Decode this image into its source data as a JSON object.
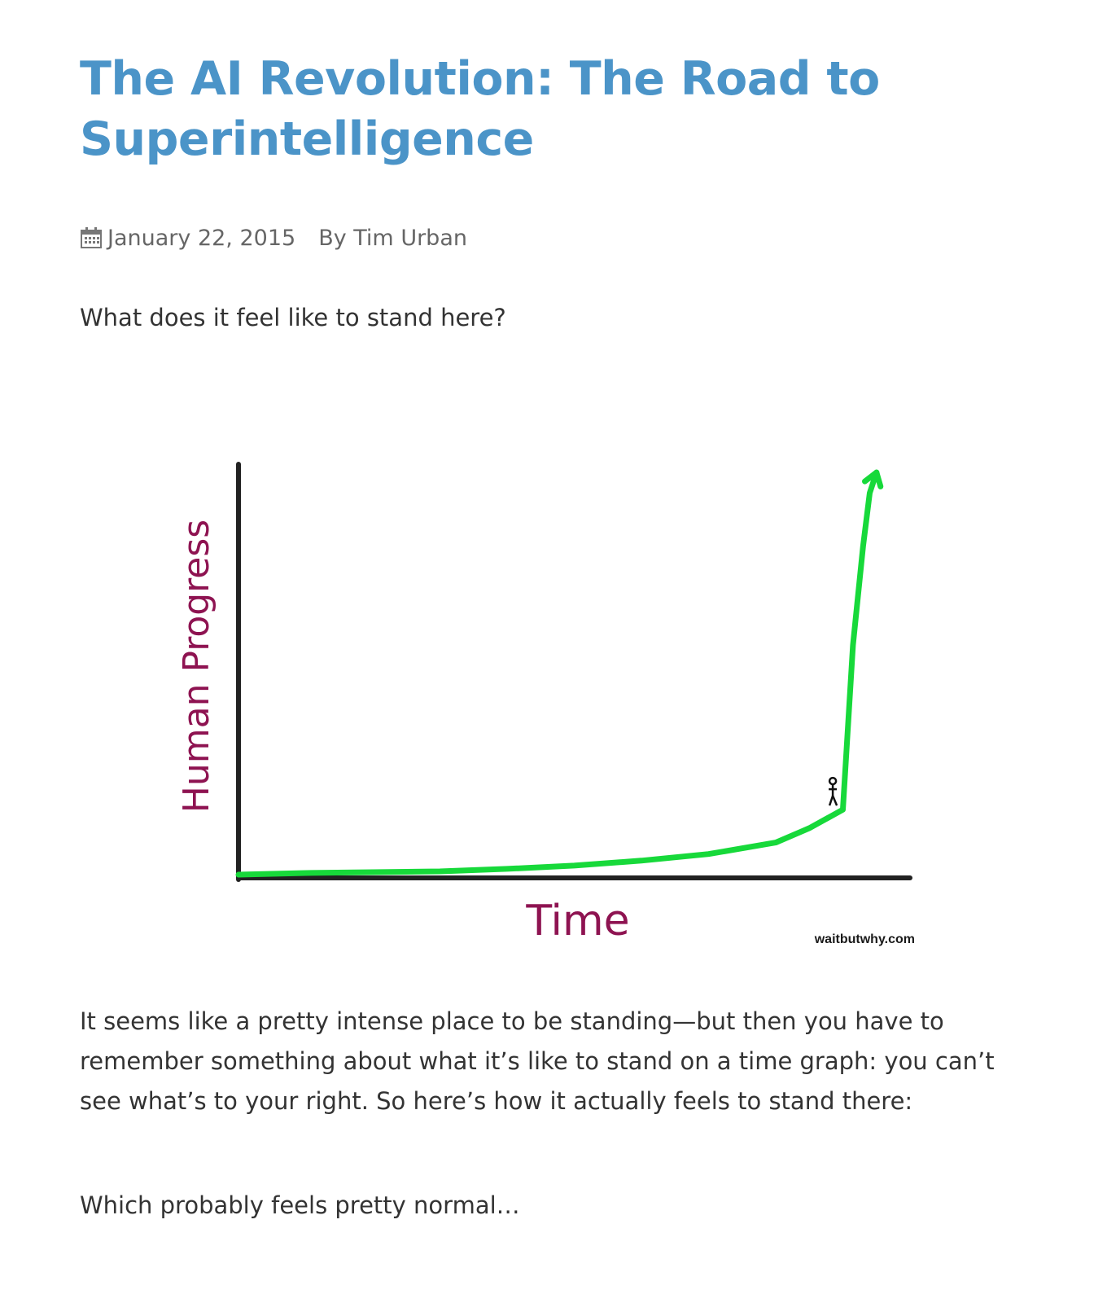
{
  "article": {
    "title": "The AI Revolution: The Road to Superintelligence",
    "meta": {
      "icon": "calendar-icon",
      "date": "January 22, 2015",
      "author": "By Tim Urban"
    },
    "paragraphs": [
      "What does it feel like to stand here?",
      "It seems like a pretty intense place to be standing—but then you have to remember something about what it’s like to stand on a time graph: you can’t see what’s to your right. So here’s how it actually feels to stand there:",
      "Which probably feels pretty normal…"
    ]
  },
  "chart_data": {
    "type": "line",
    "xlabel": "Time",
    "ylabel": "Human Progress",
    "watermark": "waitbutwhy.com",
    "line_color": "#17d93a",
    "axis_color": "#222222",
    "label_color": "#8e1351",
    "grid": false,
    "ticks": false,
    "series": [
      {
        "x": [
          0,
          10,
          20,
          30,
          40,
          50,
          60,
          70,
          80,
          85,
          90,
          91.5,
          93,
          94,
          95
        ],
        "y": [
          0.2,
          0.6,
          0.8,
          1.0,
          1.6,
          2.4,
          3.6,
          5.2,
          8.0,
          11.5,
          16.0,
          56.0,
          80.0,
          93.0,
          98.0
        ]
      }
    ],
    "xlim": [
      0,
      100
    ],
    "ylim": [
      0,
      100
    ],
    "arrow_at_end": true,
    "figure_marker": {
      "icon": "stick-figure-icon",
      "x": 88.5,
      "y": 17
    }
  }
}
